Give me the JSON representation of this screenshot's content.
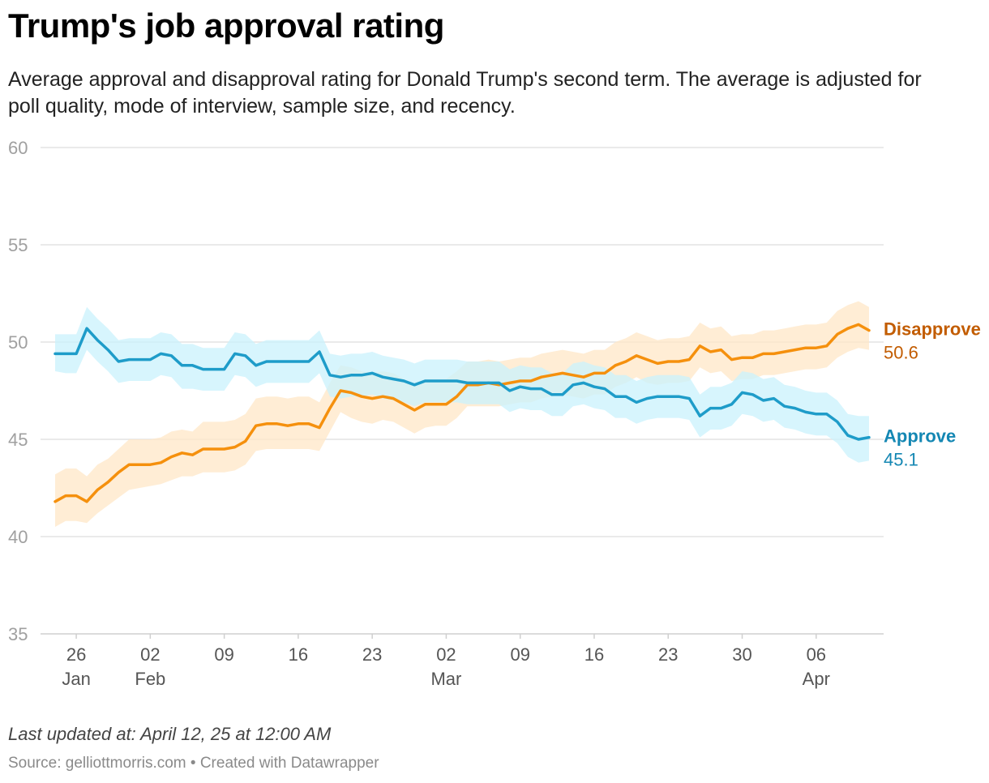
{
  "header": {
    "title": "Trump's job approval rating",
    "subtitle": "Average approval and disapproval rating for Donald Trump's second term. The average is adjusted for poll quality, mode of interview, sample size, and recency."
  },
  "footer": {
    "updated": "Last updated at: April 12, 25 at 12:00 AM",
    "source": "Source: gelliottmorris.com • Created with Datawrapper"
  },
  "chart_data": {
    "type": "line",
    "title": "Trump's job approval rating",
    "ylim": [
      35,
      60
    ],
    "yticks": [
      35,
      40,
      45,
      50,
      55,
      60
    ],
    "grid": true,
    "xdomain": [
      "2025-01-24",
      "2025-04-12"
    ],
    "xticks": [
      {
        "date": "2025-01-26",
        "label": "26",
        "sublabel": "Jan"
      },
      {
        "date": "2025-02-02",
        "label": "02",
        "sublabel": "Feb"
      },
      {
        "date": "2025-02-09",
        "label": "09",
        "sublabel": ""
      },
      {
        "date": "2025-02-16",
        "label": "16",
        "sublabel": ""
      },
      {
        "date": "2025-02-23",
        "label": "23",
        "sublabel": ""
      },
      {
        "date": "2025-03-02",
        "label": "02",
        "sublabel": "Mar"
      },
      {
        "date": "2025-03-09",
        "label": "09",
        "sublabel": ""
      },
      {
        "date": "2025-03-16",
        "label": "16",
        "sublabel": ""
      },
      {
        "date": "2025-03-23",
        "label": "23",
        "sublabel": ""
      },
      {
        "date": "2025-03-30",
        "label": "30",
        "sublabel": ""
      },
      {
        "date": "2025-04-06",
        "label": "06",
        "sublabel": "Apr"
      }
    ],
    "series": [
      {
        "name": "Disapprove",
        "label_value": "50.6",
        "color": "#f5900d",
        "band_color": "#ffe7c7",
        "label_color": "#c25c00",
        "points": [
          [
            "2025-01-24",
            41.8,
            40.5,
            43.2
          ],
          [
            "2025-01-25",
            42.1,
            40.8,
            43.5
          ],
          [
            "2025-01-26",
            42.1,
            40.8,
            43.5
          ],
          [
            "2025-01-27",
            41.8,
            40.7,
            43.1
          ],
          [
            "2025-01-28",
            42.4,
            41.2,
            43.7
          ],
          [
            "2025-01-29",
            42.8,
            41.6,
            44.0
          ],
          [
            "2025-01-30",
            43.3,
            42.0,
            44.5
          ],
          [
            "2025-01-31",
            43.7,
            42.4,
            45.0
          ],
          [
            "2025-02-01",
            43.7,
            42.5,
            45.0
          ],
          [
            "2025-02-02",
            43.7,
            42.6,
            45.0
          ],
          [
            "2025-02-03",
            43.8,
            42.7,
            45.1
          ],
          [
            "2025-02-04",
            44.1,
            42.9,
            45.4
          ],
          [
            "2025-02-05",
            44.3,
            43.1,
            45.5
          ],
          [
            "2025-02-06",
            44.2,
            43.1,
            45.4
          ],
          [
            "2025-02-07",
            44.5,
            43.3,
            45.9
          ],
          [
            "2025-02-08",
            44.5,
            43.3,
            45.9
          ],
          [
            "2025-02-09",
            44.5,
            43.3,
            45.9
          ],
          [
            "2025-02-10",
            44.6,
            43.4,
            46.0
          ],
          [
            "2025-02-11",
            44.9,
            43.7,
            46.3
          ],
          [
            "2025-02-12",
            45.7,
            44.4,
            47.1
          ],
          [
            "2025-02-13",
            45.8,
            44.5,
            47.2
          ],
          [
            "2025-02-14",
            45.8,
            44.5,
            47.2
          ],
          [
            "2025-02-15",
            45.7,
            44.5,
            47.1
          ],
          [
            "2025-02-16",
            45.8,
            44.5,
            47.2
          ],
          [
            "2025-02-17",
            45.8,
            44.5,
            47.2
          ],
          [
            "2025-02-18",
            45.6,
            44.4,
            46.9
          ],
          [
            "2025-02-19",
            46.6,
            45.4,
            47.9
          ],
          [
            "2025-02-20",
            47.5,
            46.4,
            48.8
          ],
          [
            "2025-02-21",
            47.4,
            46.1,
            48.7
          ],
          [
            "2025-02-22",
            47.2,
            45.9,
            48.5
          ],
          [
            "2025-02-23",
            47.1,
            45.8,
            48.4
          ],
          [
            "2025-02-24",
            47.2,
            46.0,
            48.5
          ],
          [
            "2025-02-25",
            47.1,
            45.9,
            48.4
          ],
          [
            "2025-02-26",
            46.8,
            45.6,
            48.1
          ],
          [
            "2025-02-27",
            46.5,
            45.3,
            47.8
          ],
          [
            "2025-02-28",
            46.8,
            45.6,
            48.1
          ],
          [
            "2025-03-01",
            46.8,
            45.7,
            48.1
          ],
          [
            "2025-03-02",
            46.8,
            45.7,
            48.1
          ],
          [
            "2025-03-03",
            47.2,
            46.1,
            48.5
          ],
          [
            "2025-03-04",
            47.8,
            46.7,
            49.0
          ],
          [
            "2025-03-05",
            47.8,
            46.7,
            49.0
          ],
          [
            "2025-03-06",
            47.9,
            46.7,
            49.1
          ],
          [
            "2025-03-07",
            47.8,
            46.7,
            49.0
          ],
          [
            "2025-03-08",
            47.9,
            46.8,
            49.1
          ],
          [
            "2025-03-09",
            48.0,
            46.9,
            49.2
          ],
          [
            "2025-03-10",
            48.0,
            46.9,
            49.2
          ],
          [
            "2025-03-11",
            48.2,
            47.1,
            49.4
          ],
          [
            "2025-03-12",
            48.3,
            47.2,
            49.5
          ],
          [
            "2025-03-13",
            48.4,
            47.3,
            49.6
          ],
          [
            "2025-03-14",
            48.3,
            47.2,
            49.5
          ],
          [
            "2025-03-15",
            48.2,
            47.1,
            49.4
          ],
          [
            "2025-03-16",
            48.4,
            47.3,
            49.6
          ],
          [
            "2025-03-17",
            48.4,
            47.3,
            49.6
          ],
          [
            "2025-03-18",
            48.8,
            47.7,
            50.0
          ],
          [
            "2025-03-19",
            49.0,
            47.9,
            50.2
          ],
          [
            "2025-03-20",
            49.3,
            48.2,
            50.5
          ],
          [
            "2025-03-21",
            49.1,
            47.9,
            50.3
          ],
          [
            "2025-03-22",
            48.9,
            47.8,
            50.1
          ],
          [
            "2025-03-23",
            49.0,
            47.9,
            50.2
          ],
          [
            "2025-03-24",
            49.0,
            47.9,
            50.2
          ],
          [
            "2025-03-25",
            49.1,
            48.0,
            50.3
          ],
          [
            "2025-03-26",
            49.8,
            48.7,
            51.0
          ],
          [
            "2025-03-27",
            49.5,
            48.4,
            50.7
          ],
          [
            "2025-03-28",
            49.6,
            48.5,
            50.8
          ],
          [
            "2025-03-29",
            49.1,
            48.0,
            50.3
          ],
          [
            "2025-03-30",
            49.2,
            48.1,
            50.4
          ],
          [
            "2025-03-31",
            49.2,
            48.1,
            50.4
          ],
          [
            "2025-04-01",
            49.4,
            48.3,
            50.6
          ],
          [
            "2025-04-02",
            49.4,
            48.3,
            50.6
          ],
          [
            "2025-04-03",
            49.5,
            48.4,
            50.7
          ],
          [
            "2025-04-04",
            49.6,
            48.5,
            50.8
          ],
          [
            "2025-04-05",
            49.7,
            48.6,
            50.9
          ],
          [
            "2025-04-06",
            49.7,
            48.6,
            50.9
          ],
          [
            "2025-04-07",
            49.8,
            48.7,
            51.0
          ],
          [
            "2025-04-08",
            50.4,
            49.2,
            51.6
          ],
          [
            "2025-04-09",
            50.7,
            49.5,
            51.9
          ],
          [
            "2025-04-10",
            50.9,
            49.7,
            52.1
          ],
          [
            "2025-04-11",
            50.6,
            49.6,
            51.8
          ]
        ]
      },
      {
        "name": "Approve",
        "label_value": "45.1",
        "color": "#1e9cc9",
        "band_color": "#c9f1fc",
        "label_color": "#1487b3",
        "points": [
          [
            "2025-01-24",
            49.4,
            48.5,
            50.4
          ],
          [
            "2025-01-25",
            49.4,
            48.4,
            50.4
          ],
          [
            "2025-01-26",
            49.4,
            48.4,
            50.4
          ],
          [
            "2025-01-27",
            50.7,
            49.6,
            51.8
          ],
          [
            "2025-01-28",
            50.1,
            49.0,
            51.2
          ],
          [
            "2025-01-29",
            49.6,
            48.5,
            50.7
          ],
          [
            "2025-01-30",
            49.0,
            47.9,
            50.1
          ],
          [
            "2025-01-31",
            49.1,
            48.0,
            50.2
          ],
          [
            "2025-02-01",
            49.1,
            48.0,
            50.2
          ],
          [
            "2025-02-02",
            49.1,
            48.0,
            50.2
          ],
          [
            "2025-02-03",
            49.4,
            48.3,
            50.5
          ],
          [
            "2025-02-04",
            49.3,
            48.2,
            50.4
          ],
          [
            "2025-02-05",
            48.8,
            47.6,
            49.9
          ],
          [
            "2025-02-06",
            48.8,
            47.6,
            49.9
          ],
          [
            "2025-02-07",
            48.6,
            47.5,
            49.7
          ],
          [
            "2025-02-08",
            48.6,
            47.5,
            49.7
          ],
          [
            "2025-02-09",
            48.6,
            47.5,
            49.7
          ],
          [
            "2025-02-10",
            49.4,
            48.3,
            50.5
          ],
          [
            "2025-02-11",
            49.3,
            48.2,
            50.4
          ],
          [
            "2025-02-12",
            48.8,
            47.7,
            49.9
          ],
          [
            "2025-02-13",
            49.0,
            47.9,
            50.1
          ],
          [
            "2025-02-14",
            49.0,
            47.9,
            50.1
          ],
          [
            "2025-02-15",
            49.0,
            47.9,
            50.1
          ],
          [
            "2025-02-16",
            49.0,
            47.9,
            50.1
          ],
          [
            "2025-02-17",
            49.0,
            47.9,
            50.1
          ],
          [
            "2025-02-18",
            49.5,
            48.4,
            50.6
          ],
          [
            "2025-02-19",
            48.3,
            47.2,
            49.4
          ],
          [
            "2025-02-20",
            48.2,
            47.1,
            49.3
          ],
          [
            "2025-02-21",
            48.3,
            47.2,
            49.4
          ],
          [
            "2025-02-22",
            48.3,
            47.2,
            49.4
          ],
          [
            "2025-02-23",
            48.4,
            47.3,
            49.5
          ],
          [
            "2025-02-24",
            48.2,
            47.1,
            49.3
          ],
          [
            "2025-02-25",
            48.1,
            47.0,
            49.2
          ],
          [
            "2025-02-26",
            48.0,
            46.9,
            49.1
          ],
          [
            "2025-02-27",
            47.8,
            46.7,
            48.9
          ],
          [
            "2025-02-28",
            48.0,
            46.9,
            49.1
          ],
          [
            "2025-03-01",
            48.0,
            46.9,
            49.1
          ],
          [
            "2025-03-02",
            48.0,
            46.9,
            49.1
          ],
          [
            "2025-03-03",
            48.0,
            46.9,
            49.1
          ],
          [
            "2025-03-04",
            47.9,
            46.8,
            49.0
          ],
          [
            "2025-03-05",
            47.9,
            46.8,
            49.0
          ],
          [
            "2025-03-06",
            47.9,
            46.8,
            49.0
          ],
          [
            "2025-03-07",
            47.9,
            46.8,
            49.0
          ],
          [
            "2025-03-08",
            47.5,
            46.4,
            48.6
          ],
          [
            "2025-03-09",
            47.7,
            46.6,
            48.8
          ],
          [
            "2025-03-10",
            47.6,
            46.5,
            48.7
          ],
          [
            "2025-03-11",
            47.6,
            46.5,
            48.7
          ],
          [
            "2025-03-12",
            47.3,
            46.2,
            48.4
          ],
          [
            "2025-03-13",
            47.3,
            46.2,
            48.4
          ],
          [
            "2025-03-14",
            47.8,
            46.7,
            48.9
          ],
          [
            "2025-03-15",
            47.9,
            46.8,
            49.0
          ],
          [
            "2025-03-16",
            47.7,
            46.6,
            48.8
          ],
          [
            "2025-03-17",
            47.6,
            46.5,
            48.7
          ],
          [
            "2025-03-18",
            47.2,
            46.1,
            48.3
          ],
          [
            "2025-03-19",
            47.2,
            46.1,
            48.3
          ],
          [
            "2025-03-20",
            46.9,
            45.8,
            48.0
          ],
          [
            "2025-03-21",
            47.1,
            46.0,
            48.2
          ],
          [
            "2025-03-22",
            47.2,
            46.1,
            48.3
          ],
          [
            "2025-03-23",
            47.2,
            46.1,
            48.3
          ],
          [
            "2025-03-24",
            47.2,
            46.1,
            48.3
          ],
          [
            "2025-03-25",
            47.1,
            46.0,
            48.2
          ],
          [
            "2025-03-26",
            46.2,
            45.1,
            47.3
          ],
          [
            "2025-03-27",
            46.6,
            45.5,
            47.7
          ],
          [
            "2025-03-28",
            46.6,
            45.5,
            47.7
          ],
          [
            "2025-03-29",
            46.8,
            45.7,
            47.9
          ],
          [
            "2025-03-30",
            47.4,
            46.3,
            48.5
          ],
          [
            "2025-03-31",
            47.3,
            46.2,
            48.4
          ],
          [
            "2025-04-01",
            47.0,
            45.9,
            48.1
          ],
          [
            "2025-04-02",
            47.1,
            46.0,
            48.2
          ],
          [
            "2025-04-03",
            46.7,
            45.6,
            47.8
          ],
          [
            "2025-04-04",
            46.6,
            45.5,
            47.7
          ],
          [
            "2025-04-05",
            46.4,
            45.3,
            47.5
          ],
          [
            "2025-04-06",
            46.3,
            45.2,
            47.4
          ],
          [
            "2025-04-07",
            46.3,
            45.2,
            47.4
          ],
          [
            "2025-04-08",
            45.9,
            44.8,
            47.0
          ],
          [
            "2025-04-09",
            45.2,
            44.1,
            46.3
          ],
          [
            "2025-04-10",
            45.0,
            43.8,
            46.2
          ],
          [
            "2025-04-11",
            45.1,
            43.9,
            46.2
          ]
        ]
      }
    ]
  }
}
